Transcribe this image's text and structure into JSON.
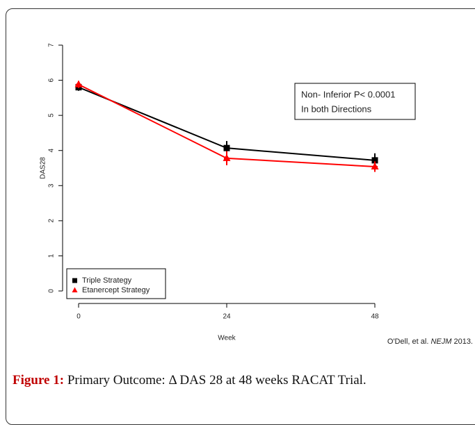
{
  "chart_data": {
    "type": "line",
    "x_label": "Week",
    "y_label": "DAS28",
    "x": [
      0,
      24,
      48
    ],
    "xlim": [
      0,
      48
    ],
    "xticks": [
      0,
      24,
      48
    ],
    "ylim": [
      0,
      7
    ],
    "yticks": [
      0,
      1,
      2,
      3,
      4,
      5,
      6,
      7
    ],
    "legend": "bottom-left",
    "series": [
      {
        "name": "Triple Strategy",
        "color": "#000000",
        "marker": "square",
        "values": [
          5.8,
          4.07,
          3.72
        ],
        "errors": [
          0.1,
          0.2,
          0.2
        ]
      },
      {
        "name": "Etanercept Strategy",
        "color": "#ff0000",
        "marker": "triangle",
        "values": [
          5.88,
          3.78,
          3.54
        ],
        "errors": [
          0.1,
          0.2,
          0.15
        ]
      }
    ],
    "annotation": [
      "Non- Inferior  P< 0.0001",
      "In both Directions"
    ],
    "source": {
      "author": "O'Dell, et al. ",
      "journal": "NEJM",
      "year": " 2013."
    }
  },
  "caption": {
    "label": "Figure 1:",
    "text": " Primary Outcome: Δ DAS 28 at 48 weeks RACAT Trial."
  }
}
